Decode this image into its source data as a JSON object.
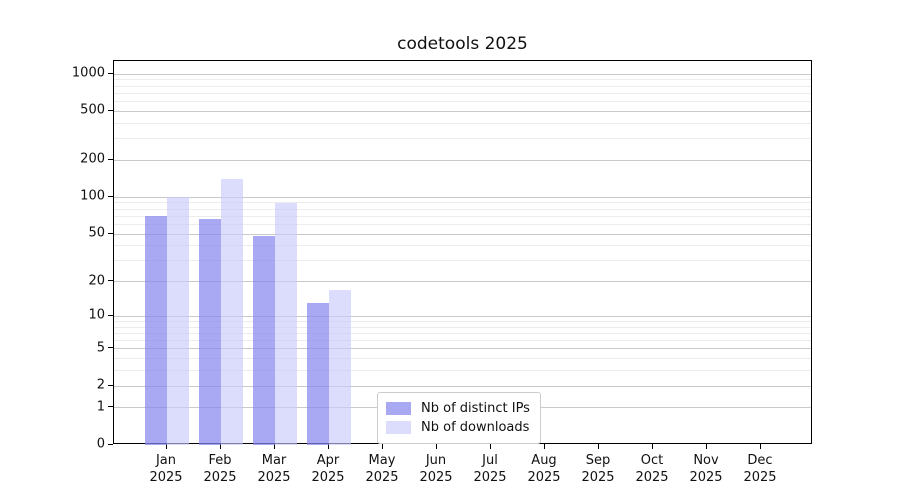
{
  "title": "codetools 2025",
  "chart_data": {
    "type": "bar",
    "title": "codetools 2025",
    "categories": [
      "Jan",
      "Feb",
      "Mar",
      "Apr",
      "May",
      "Jun",
      "Jul",
      "Aug",
      "Sep",
      "Oct",
      "Nov",
      "Dec"
    ],
    "x_year_label": "2025",
    "series": [
      {
        "name": "Nb of distinct IPs",
        "values": [
          70,
          67,
          48,
          13,
          null,
          null,
          null,
          null,
          null,
          null,
          null,
          null
        ],
        "fill": "rgba(136,136,238,0.72)",
        "approx_hex": "#a9a9f0"
      },
      {
        "name": "Nb of downloads",
        "values": [
          100,
          140,
          90,
          17,
          null,
          null,
          null,
          null,
          null,
          null,
          null,
          null
        ],
        "fill": "rgba(200,200,250,0.64)",
        "approx_hex": "#dcdcf9"
      }
    ],
    "yscale": "log1p",
    "ylim": [
      0,
      1270
    ],
    "y_major_ticks": [
      0,
      1,
      2,
      5,
      10,
      20,
      50,
      100,
      200,
      500,
      1000
    ],
    "y_minor_ticks": [
      3,
      4,
      6,
      7,
      8,
      9,
      30,
      40,
      60,
      70,
      80,
      90,
      300,
      400,
      600,
      700,
      800,
      900
    ],
    "grid": true,
    "legend_position": "bottom-center"
  },
  "colors": {
    "grid_major": "#c9c9c9",
    "grid_minor": "#ececec",
    "axis": "#000000",
    "text": "#111111",
    "legend_border": "#cccccc",
    "background": "#ffffff"
  }
}
